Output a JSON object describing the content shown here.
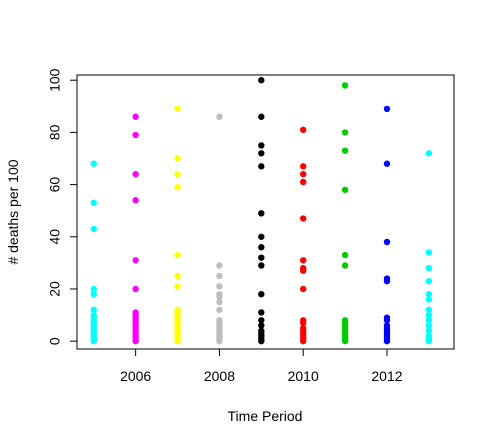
{
  "chart_data": {
    "type": "scatter",
    "title": "",
    "xlabel": "Time Period",
    "ylabel": "# deaths per 100",
    "xlim": [
      2004.6,
      2013.6
    ],
    "ylim": [
      -3,
      102
    ],
    "x_ticks": [
      2006,
      2008,
      2010,
      2012
    ],
    "y_ticks": [
      0,
      20,
      40,
      60,
      80,
      100
    ],
    "grid": false,
    "legend": "none",
    "series": [
      {
        "x": 2005,
        "color": "#00FFFF",
        "values": [
          68,
          53,
          43,
          20,
          18,
          12,
          10,
          9,
          8,
          7,
          6,
          5,
          4,
          3,
          2,
          1,
          0
        ]
      },
      {
        "x": 2006,
        "color": "#FF00FF",
        "values": [
          86,
          79,
          64,
          54,
          31,
          20,
          11,
          10,
          9,
          8,
          7,
          6,
          5,
          4,
          3,
          2,
          1,
          0
        ]
      },
      {
        "x": 2007,
        "color": "#FFFF00",
        "values": [
          89,
          70,
          64,
          59,
          33,
          25,
          21,
          12,
          11,
          10,
          9,
          8,
          7,
          6,
          5,
          4,
          3,
          2,
          1,
          0
        ]
      },
      {
        "x": 2008,
        "color": "#BEBEBE",
        "values": [
          86,
          29,
          25,
          21,
          18,
          17,
          15,
          12,
          8,
          7,
          6,
          5,
          4,
          3,
          2,
          1,
          0
        ]
      },
      {
        "x": 2009,
        "color": "#000000",
        "values": [
          100,
          86,
          75,
          72,
          67,
          49,
          40,
          36,
          32,
          29,
          18,
          11,
          8,
          6,
          4,
          3,
          2,
          1,
          0
        ]
      },
      {
        "x": 2010,
        "color": "#FF0000",
        "values": [
          81,
          67,
          64,
          61,
          47,
          31,
          28,
          27,
          20,
          8,
          7,
          5,
          4,
          3,
          2,
          1,
          0
        ]
      },
      {
        "x": 2011,
        "color": "#00CD00",
        "values": [
          98,
          80,
          73,
          58,
          33,
          29,
          8,
          7,
          6,
          5,
          4,
          3,
          2,
          1,
          0
        ]
      },
      {
        "x": 2012,
        "color": "#0000FF",
        "values": [
          89,
          68,
          38,
          24,
          23,
          9,
          8,
          6,
          5,
          4,
          3,
          2,
          1,
          0
        ]
      },
      {
        "x": 2013,
        "color": "#00FFFF",
        "values": [
          72,
          34,
          28,
          23,
          18,
          16,
          12,
          10,
          8,
          6,
          4,
          2,
          1,
          0
        ]
      }
    ]
  }
}
